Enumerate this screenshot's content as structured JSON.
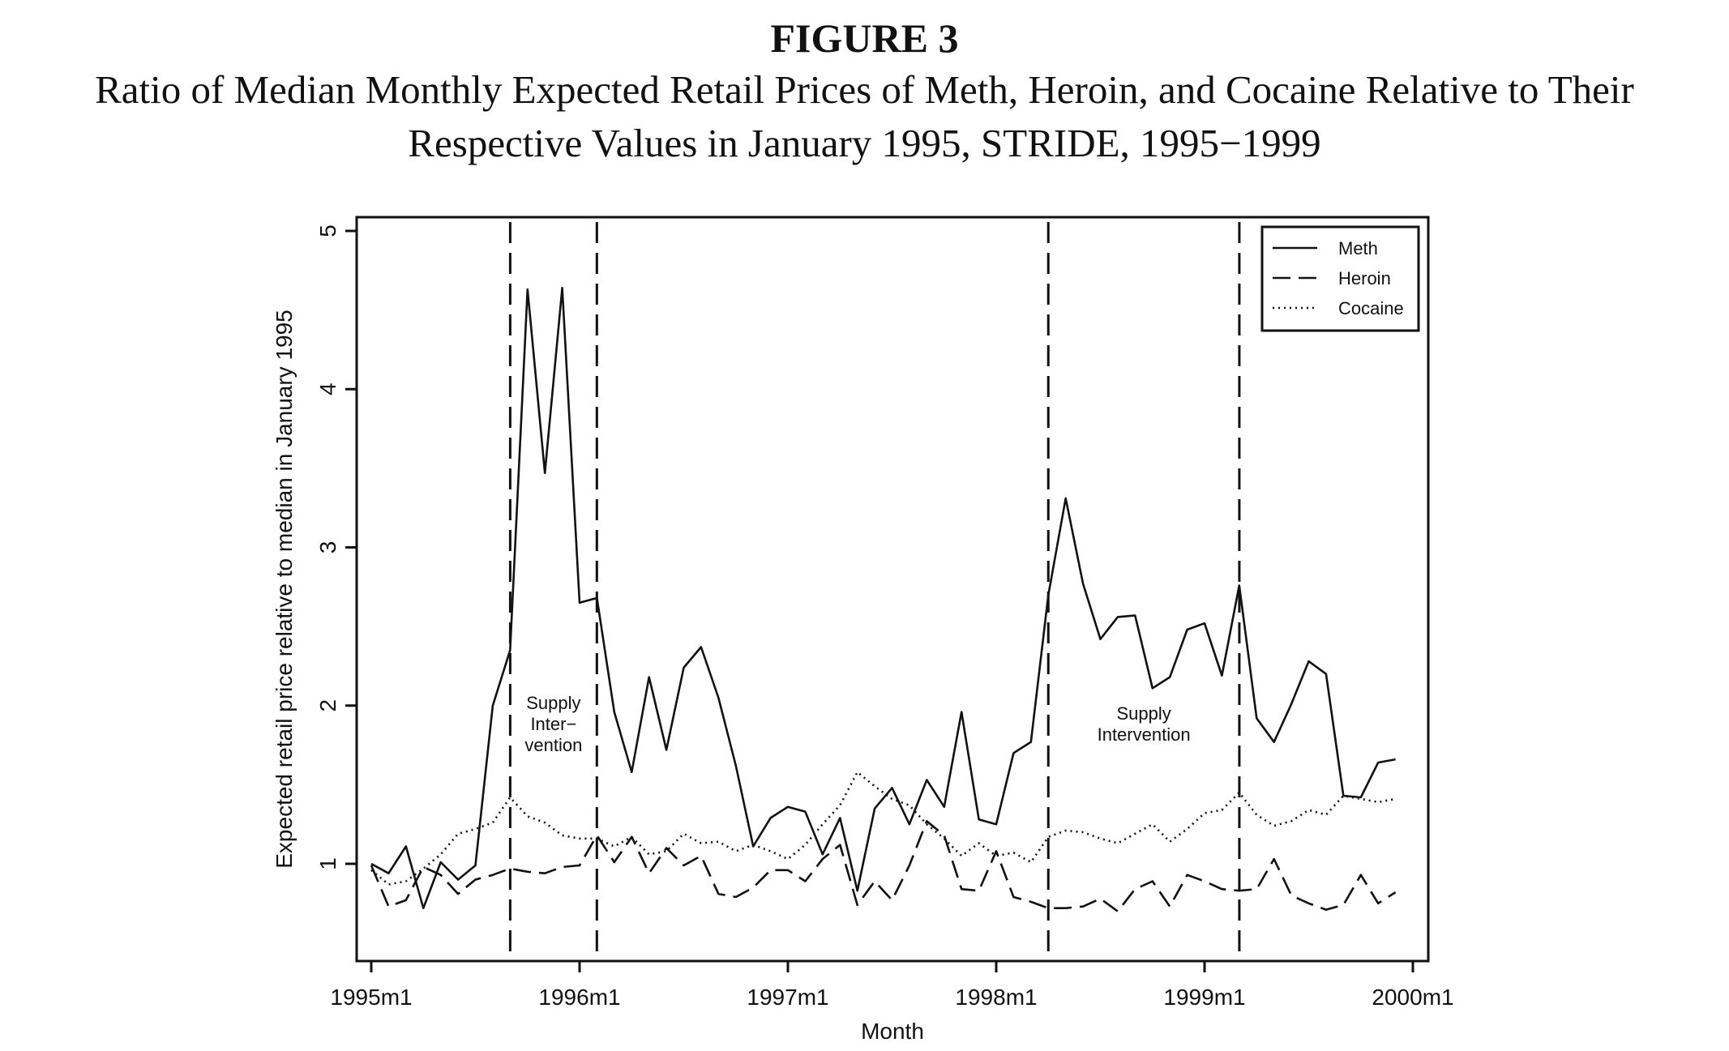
{
  "figure_label": "FIGURE 3",
  "chart_data": {
    "type": "line",
    "title": "Ratio of Median Monthly Expected Retail Prices of Meth, Heroin, and Cocaine Relative to Their Respective Values in January 1995, STRIDE, 1995−1999",
    "xlabel": "Month",
    "ylabel": "Expected retail price relative to median in January 1995",
    "xlim": [
      1995.0,
      2000.0
    ],
    "ylim": [
      0.4,
      5.1
    ],
    "x_ticks": [
      1995,
      1996,
      1997,
      1998,
      1999,
      2000
    ],
    "x_tick_labels": [
      "1995m1",
      "1996m1",
      "1997m1",
      "1998m1",
      "1999m1",
      "2000m1"
    ],
    "y_ticks": [
      1,
      2,
      3,
      4,
      5
    ],
    "y_tick_labels": [
      "1",
      "2",
      "3",
      "4",
      "5"
    ],
    "grid": false,
    "legend_position": "top-right",
    "series": [
      {
        "name": "Meth",
        "style": "solid",
        "values": [
          1.0,
          0.94,
          1.11,
          0.72,
          1.01,
          0.9,
          0.99,
          2.0,
          2.35,
          4.63,
          3.47,
          4.64,
          2.65,
          2.68,
          1.96,
          1.58,
          2.18,
          1.72,
          2.24,
          2.37,
          2.05,
          1.62,
          1.11,
          1.29,
          1.36,
          1.33,
          1.06,
          1.29,
          0.83,
          1.35,
          1.48,
          1.25,
          1.53,
          1.36,
          1.96,
          1.28,
          1.25,
          1.7,
          1.77,
          2.7,
          3.31,
          2.77,
          2.42,
          2.56,
          2.57,
          2.11,
          2.18,
          2.48,
          2.52,
          2.19,
          2.76,
          1.92,
          1.77,
          2.01,
          2.28,
          2.2,
          1.43,
          1.42,
          1.64,
          1.66
        ]
      },
      {
        "name": "Heroin",
        "style": "dashed",
        "values": [
          0.99,
          0.73,
          0.77,
          0.98,
          0.93,
          0.81,
          0.9,
          0.93,
          0.97,
          0.95,
          0.94,
          0.98,
          0.99,
          1.18,
          1.01,
          1.17,
          0.94,
          1.1,
          0.99,
          1.05,
          0.81,
          0.79,
          0.85,
          0.96,
          0.96,
          0.89,
          1.03,
          1.12,
          0.74,
          0.89,
          0.77,
          0.99,
          1.27,
          1.18,
          0.84,
          0.83,
          1.08,
          0.79,
          0.76,
          0.72,
          0.72,
          0.73,
          0.78,
          0.7,
          0.84,
          0.89,
          0.73,
          0.93,
          0.89,
          0.84,
          0.83,
          0.84,
          1.03,
          0.8,
          0.75,
          0.71,
          0.74,
          0.93,
          0.75,
          0.82
        ]
      },
      {
        "name": "Cocaine",
        "style": "dotted",
        "values": [
          0.96,
          0.87,
          0.89,
          0.97,
          1.06,
          1.19,
          1.22,
          1.26,
          1.42,
          1.3,
          1.26,
          1.18,
          1.16,
          1.16,
          1.11,
          1.17,
          1.06,
          1.08,
          1.19,
          1.13,
          1.14,
          1.08,
          1.12,
          1.08,
          1.03,
          1.12,
          1.25,
          1.37,
          1.58,
          1.49,
          1.41,
          1.37,
          1.25,
          1.16,
          1.05,
          1.13,
          1.05,
          1.07,
          1.01,
          1.17,
          1.21,
          1.2,
          1.16,
          1.13,
          1.19,
          1.25,
          1.14,
          1.22,
          1.32,
          1.34,
          1.45,
          1.31,
          1.24,
          1.27,
          1.34,
          1.31,
          1.43,
          1.41,
          1.39,
          1.41
        ]
      }
    ],
    "interventions": [
      {
        "start": 1995.667,
        "end": 1996.083,
        "label_lines": [
          "Supply",
          "Inter−",
          "vention"
        ]
      },
      {
        "start": 1998.25,
        "end": 1999.167,
        "label_lines": [
          "Supply",
          "Intervention"
        ]
      }
    ]
  }
}
